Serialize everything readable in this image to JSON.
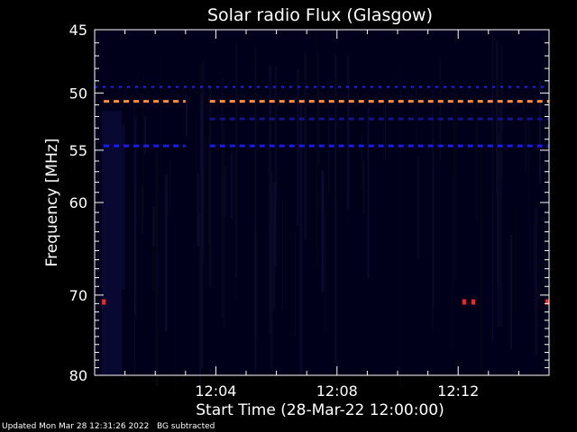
{
  "chart_data": {
    "type": "heatmap",
    "title": "Solar radio Flux (Glasgow)",
    "ylabel": "Frequency [MHz]",
    "xlabel": "Start Time (28-Mar-22 12:00:00)",
    "y_axis": {
      "scale": "log",
      "range": [
        80,
        45
      ],
      "ticks": [
        45,
        50,
        55,
        60,
        70,
        80
      ],
      "direction": "increasing-downward"
    },
    "x_axis": {
      "range_minutes": [
        0,
        15
      ],
      "ticks": [
        "12:04",
        "12:08",
        "12:12"
      ],
      "tick_minutes": [
        4,
        8,
        12
      ]
    },
    "grid": false,
    "background": "#00001a",
    "features": [
      {
        "name": "orange interference band",
        "freq_mhz": 50.7,
        "style": "dashed",
        "color": "#ff8c40",
        "segments_min": [
          [
            0.3,
            3.0
          ],
          [
            3.8,
            15
          ]
        ]
      },
      {
        "name": "blue band upper",
        "freq_mhz": 49.5,
        "style": "dotted",
        "color": "#2020ff",
        "segments_min": [
          [
            0,
            15
          ]
        ]
      },
      {
        "name": "blue band lower",
        "freq_mhz": 54.6,
        "style": "dashed",
        "color": "#1a1aee",
        "segments_min": [
          [
            0.3,
            3.0
          ],
          [
            3.8,
            15
          ]
        ]
      },
      {
        "name": "faint band",
        "freq_mhz": 52.2,
        "style": "dashed",
        "color": "#14148a",
        "segments_min": [
          [
            3.8,
            15
          ]
        ]
      },
      {
        "name": "red spots",
        "freq_mhz": 70.8,
        "color": "#ff2020",
        "times_min": [
          0.3,
          12.2,
          12.5,
          15.0
        ]
      }
    ]
  },
  "footer": {
    "updated": "Updated Mon Mar 28 12:31:26 2022",
    "note": "BG subtracted"
  }
}
